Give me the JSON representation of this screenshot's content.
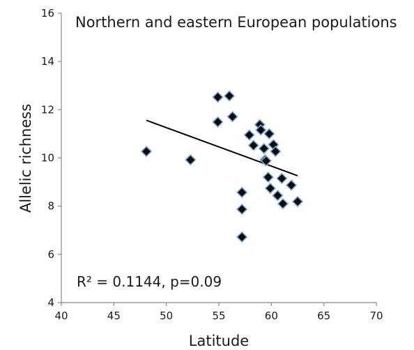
{
  "chart_data": {
    "type": "scatter",
    "title": "Northern and eastern European populations",
    "xlabel": "Latitude",
    "ylabel": "Allelic richness",
    "xlim": [
      40,
      70
    ],
    "ylim": [
      4,
      16
    ],
    "xticks": [
      "40",
      "45",
      "50",
      "55",
      "60",
      "65",
      "70"
    ],
    "yticks": [
      "4",
      "6",
      "8",
      "10",
      "12",
      "14",
      "16"
    ],
    "annotation": "R² = 0.1144, p=0.09",
    "marker": "diamond",
    "marker_color": "#0a0a0a",
    "marker_edge_color": "#7aa7d6",
    "trendline_color": "#000000",
    "grid": false,
    "legend": "none",
    "series": [
      {
        "x": [
          48.1,
          52.3,
          54.9,
          54.9,
          56.0,
          56.3,
          57.2,
          57.2,
          57.2,
          57.9,
          58.3,
          58.9,
          59.0,
          59.3,
          59.4,
          59.5,
          59.7,
          59.8,
          59.9,
          60.2,
          60.4,
          60.6,
          61.0,
          61.1,
          61.9,
          62.5
        ],
        "y": [
          10.27,
          9.92,
          12.52,
          11.49,
          12.57,
          11.71,
          8.57,
          7.87,
          6.72,
          10.95,
          10.52,
          11.38,
          11.16,
          10.39,
          9.92,
          9.88,
          9.2,
          11.0,
          8.74,
          10.55,
          10.27,
          8.44,
          9.15,
          8.1,
          8.87,
          8.19
        ]
      }
    ],
    "trendline": {
      "x": [
        48.1,
        62.5
      ],
      "y": [
        11.56,
        9.26
      ]
    }
  }
}
